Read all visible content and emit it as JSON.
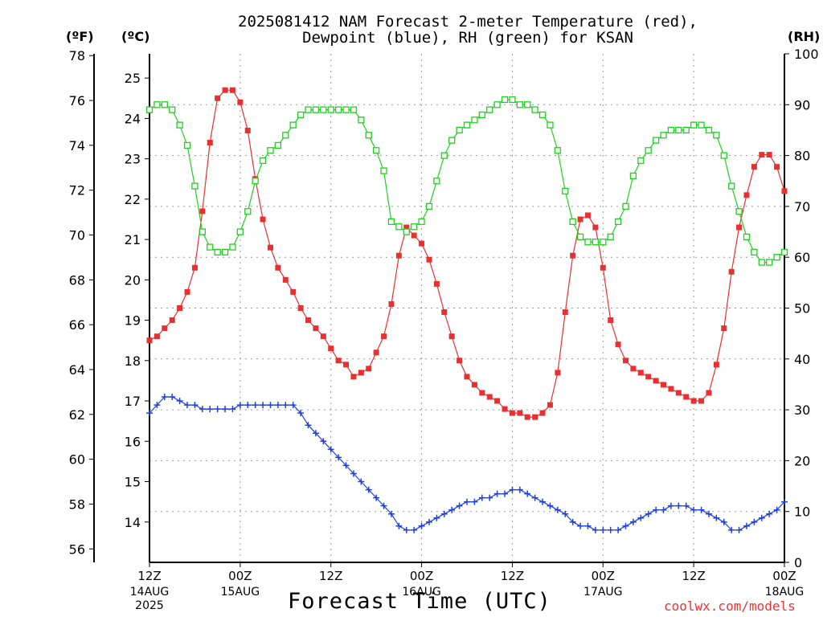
{
  "title_line1": "2025081412 NAM Forecast 2-meter Temperature (red),",
  "title_line2": "Dewpoint (blue), RH (green) for KSAN",
  "unit_f": "(ºF)",
  "unit_c": "(ºC)",
  "unit_rh": "(RH)",
  "xlabel": "Forecast Time (UTC)",
  "credit": "coolwx.com/models",
  "colors": {
    "temperature": "#e83030",
    "dewpoint": "#2040e0",
    "rh": "#20d020"
  },
  "chart_data": {
    "type": "line",
    "x_hours_from_start": [
      0,
      1,
      2,
      3,
      4,
      5,
      6,
      7,
      8,
      9,
      10,
      11,
      12,
      13,
      14,
      15,
      16,
      17,
      18,
      19,
      20,
      21,
      22,
      23,
      24,
      25,
      26,
      27,
      28,
      29,
      30,
      31,
      32,
      33,
      34,
      35,
      36,
      37,
      38,
      39,
      40,
      41,
      42,
      43,
      44,
      45,
      46,
      47,
      48,
      49,
      50,
      51,
      52,
      53,
      54,
      55,
      56,
      57,
      58,
      59,
      60,
      61,
      62,
      63,
      64,
      65,
      66,
      67,
      68,
      69,
      70,
      71,
      72,
      73,
      74,
      75,
      76,
      77,
      78,
      79,
      80,
      81,
      82,
      83,
      84
    ],
    "x_ticks": [
      {
        "hour": 0,
        "label": "12Z",
        "sub": [
          "14AUG",
          "2025"
        ]
      },
      {
        "hour": 12,
        "label": "00Z",
        "sub": [
          "15AUG"
        ]
      },
      {
        "hour": 24,
        "label": "12Z",
        "sub": []
      },
      {
        "hour": 36,
        "label": "00Z",
        "sub": [
          "16AUG"
        ]
      },
      {
        "hour": 48,
        "label": "12Z",
        "sub": []
      },
      {
        "hour": 60,
        "label": "00Z",
        "sub": [
          "17AUG"
        ]
      },
      {
        "hour": 72,
        "label": "12Z",
        "sub": []
      },
      {
        "hour": 84,
        "label": "00Z",
        "sub": [
          "18AUG"
        ]
      }
    ],
    "y_left_celsius": {
      "range": [
        13.0,
        25.6
      ],
      "ticks": [
        14,
        15,
        16,
        17,
        18,
        19,
        20,
        21,
        22,
        23,
        24,
        25
      ]
    },
    "y_far_left_fahrenheit": {
      "ticks": [
        56,
        58,
        60,
        62,
        64,
        66,
        68,
        70,
        72,
        74,
        76,
        78
      ]
    },
    "y_right_rh": {
      "range": [
        0,
        100
      ],
      "ticks": [
        0,
        10,
        20,
        30,
        40,
        50,
        60,
        70,
        80,
        90,
        100
      ]
    },
    "grid": true,
    "series": [
      {
        "name": "Temperature",
        "unit": "C",
        "marker": "filled-square",
        "values": [
          18.5,
          18.6,
          18.8,
          19.0,
          19.3,
          19.7,
          20.3,
          21.7,
          23.4,
          24.5,
          24.7,
          24.7,
          24.4,
          23.7,
          22.5,
          21.5,
          20.8,
          20.3,
          20.0,
          19.7,
          19.3,
          19.0,
          18.8,
          18.6,
          18.3,
          18.0,
          17.9,
          17.6,
          17.7,
          17.8,
          18.2,
          18.6,
          19.4,
          20.6,
          21.3,
          21.1,
          20.9,
          20.5,
          19.9,
          19.2,
          18.6,
          18.0,
          17.6,
          17.4,
          17.2,
          17.1,
          17.0,
          16.8,
          16.7,
          16.7,
          16.6,
          16.6,
          16.7,
          16.9,
          17.7,
          19.2,
          20.6,
          21.5,
          21.6,
          21.3,
          20.3,
          19.0,
          18.4,
          18.0,
          17.8,
          17.7,
          17.6,
          17.5,
          17.4,
          17.3,
          17.2,
          17.1,
          17.0,
          17.0,
          17.2,
          17.9,
          18.8,
          20.2,
          21.3,
          22.1,
          22.8,
          23.1,
          23.1,
          22.8,
          22.2
        ]
      },
      {
        "name": "Dewpoint",
        "unit": "C",
        "marker": "plus",
        "values": [
          16.7,
          16.9,
          17.1,
          17.1,
          17.0,
          16.9,
          16.9,
          16.8,
          16.8,
          16.8,
          16.8,
          16.8,
          16.9,
          16.9,
          16.9,
          16.9,
          16.9,
          16.9,
          16.9,
          16.9,
          16.7,
          16.4,
          16.2,
          16.0,
          15.8,
          15.6,
          15.4,
          15.2,
          15.0,
          14.8,
          14.6,
          14.4,
          14.2,
          13.9,
          13.8,
          13.8,
          13.9,
          14.0,
          14.1,
          14.2,
          14.3,
          14.4,
          14.5,
          14.5,
          14.6,
          14.6,
          14.7,
          14.7,
          14.8,
          14.8,
          14.7,
          14.6,
          14.5,
          14.4,
          14.3,
          14.2,
          14.0,
          13.9,
          13.9,
          13.8,
          13.8,
          13.8,
          13.8,
          13.9,
          14.0,
          14.1,
          14.2,
          14.3,
          14.3,
          14.4,
          14.4,
          14.4,
          14.3,
          14.3,
          14.2,
          14.1,
          14.0,
          13.8,
          13.8,
          13.9,
          14.0,
          14.1,
          14.2,
          14.3,
          14.5
        ]
      },
      {
        "name": "RH",
        "unit": "%",
        "marker": "open-square",
        "values": [
          89,
          90,
          90,
          89,
          86,
          82,
          74,
          65,
          62,
          61,
          61,
          62,
          65,
          69,
          75,
          79,
          81,
          82,
          84,
          86,
          88,
          89,
          89,
          89,
          89,
          89,
          89,
          89,
          87,
          84,
          81,
          77,
          67,
          66,
          65,
          66,
          67,
          70,
          75,
          80,
          83,
          85,
          86,
          87,
          88,
          89,
          90,
          91,
          91,
          90,
          90,
          89,
          88,
          86,
          81,
          73,
          67,
          64,
          63,
          63,
          63,
          64,
          67,
          70,
          76,
          79,
          81,
          83,
          84,
          85,
          85,
          85,
          86,
          86,
          85,
          84,
          80,
          74,
          69,
          64,
          61,
          59,
          59,
          60,
          61
        ]
      }
    ]
  }
}
